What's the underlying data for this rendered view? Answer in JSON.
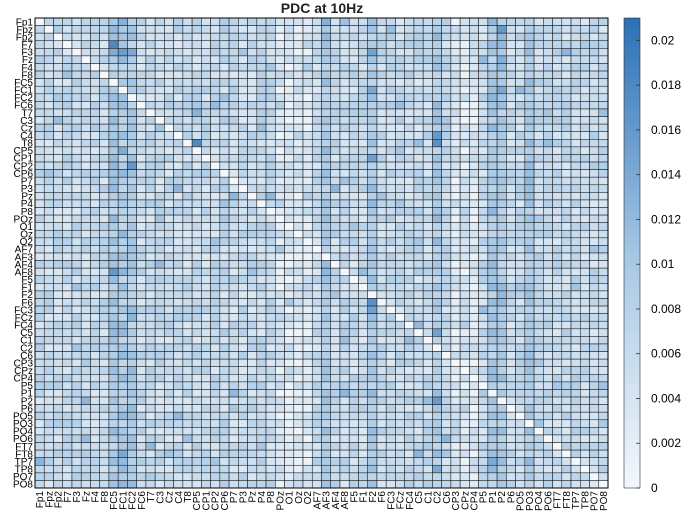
{
  "chart_data": {
    "type": "heatmap",
    "title": "PDC at 10Hz",
    "xlabel": "",
    "ylabel": "",
    "row_labels": [
      "Fp1",
      "Fpz",
      "Fp2",
      "F7",
      "F3",
      "Fz",
      "F4",
      "F8",
      "FC5",
      "FC1",
      "FC2",
      "FC6",
      "T7",
      "C3",
      "Cz",
      "C4",
      "T8",
      "CP5",
      "CP1",
      "CP2",
      "CP6",
      "P7",
      "P3",
      "Pz",
      "P4",
      "P8",
      "POz",
      "O1",
      "Oz",
      "O2",
      "AF7",
      "AF3",
      "AF4",
      "AF8",
      "F5",
      "F1",
      "F2",
      "F6",
      "FC3",
      "FCz",
      "FC4",
      "C5",
      "C1",
      "C2",
      "C6",
      "CP3",
      "CPz",
      "CP4",
      "P5",
      "P1",
      "P2",
      "P6",
      "PO5",
      "PO3",
      "PO4",
      "PO6",
      "FT7",
      "FT8",
      "TP7",
      "TP8",
      "PO7",
      "PO8"
    ],
    "col_labels": [
      "Fp1",
      "Fpz",
      "Fp2",
      "F7",
      "F3",
      "Fz",
      "F4",
      "F8",
      "FC5",
      "FC1",
      "FC2",
      "FC6",
      "T7",
      "C3",
      "Cz",
      "C4",
      "T8",
      "CP5",
      "CP1",
      "CP2",
      "CP6",
      "P7",
      "P3",
      "Pz",
      "P4",
      "P8",
      "POz",
      "O1",
      "Oz",
      "O2",
      "AF7",
      "AF3",
      "AF4",
      "AF8",
      "F5",
      "F1",
      "F2",
      "F6",
      "FC3",
      "FCz",
      "FC4",
      "C5",
      "C1",
      "C2",
      "C6",
      "CP3",
      "CPz",
      "CP4",
      "P5",
      "P1",
      "P2",
      "P6",
      "PO5",
      "PO3",
      "PO4",
      "PO6",
      "FT7",
      "FT8",
      "TP7",
      "TP8",
      "PO7",
      "PO8"
    ],
    "colorbar": {
      "min": 0,
      "max": 0.021,
      "ticks": [
        "0",
        "0.002",
        "0.004",
        "0.006",
        "0.008",
        "0.01",
        "0.012",
        "0.014",
        "0.016",
        "0.018",
        "0.02"
      ],
      "tick_values": [
        0,
        0.002,
        0.004,
        0.006,
        0.008,
        0.01,
        0.012,
        0.014,
        0.016,
        0.018,
        0.02
      ],
      "color_low": "#f4f8fc",
      "color_high": "#2c70b6"
    },
    "diagonal_value": 0,
    "typical_value": 0.006,
    "strong_source_columns": [
      "FC5",
      "FC1",
      "FC2",
      "AF3",
      "F2",
      "C2",
      "P1",
      "P2",
      "PO3"
    ],
    "weak_source_columns": [
      "O1",
      "Oz",
      "O2",
      "POz",
      "CP3",
      "CPz",
      "CP4"
    ],
    "notable_cells": [
      {
        "row": "F7",
        "col": "FC5",
        "value": 0.018
      },
      {
        "row": "T8",
        "col": "CP5",
        "value": 0.018
      },
      {
        "row": "T8",
        "col": "C2",
        "value": 0.017
      },
      {
        "row": "C4",
        "col": "C2",
        "value": 0.016
      },
      {
        "row": "F6",
        "col": "F2",
        "value": 0.017
      },
      {
        "row": "FC3",
        "col": "F2",
        "value": 0.015
      },
      {
        "row": "AF8",
        "col": "FC5",
        "value": 0.016
      },
      {
        "row": "C5",
        "col": "C2",
        "value": 0.015
      },
      {
        "row": "TP7",
        "col": "P1",
        "value": 0.014
      },
      {
        "row": "FT8",
        "col": "FC1",
        "value": 0.014
      },
      {
        "row": "Fp1",
        "col": "FC1",
        "value": 0.013
      },
      {
        "row": "Fpz",
        "col": "FC5",
        "value": 0.012
      }
    ]
  }
}
